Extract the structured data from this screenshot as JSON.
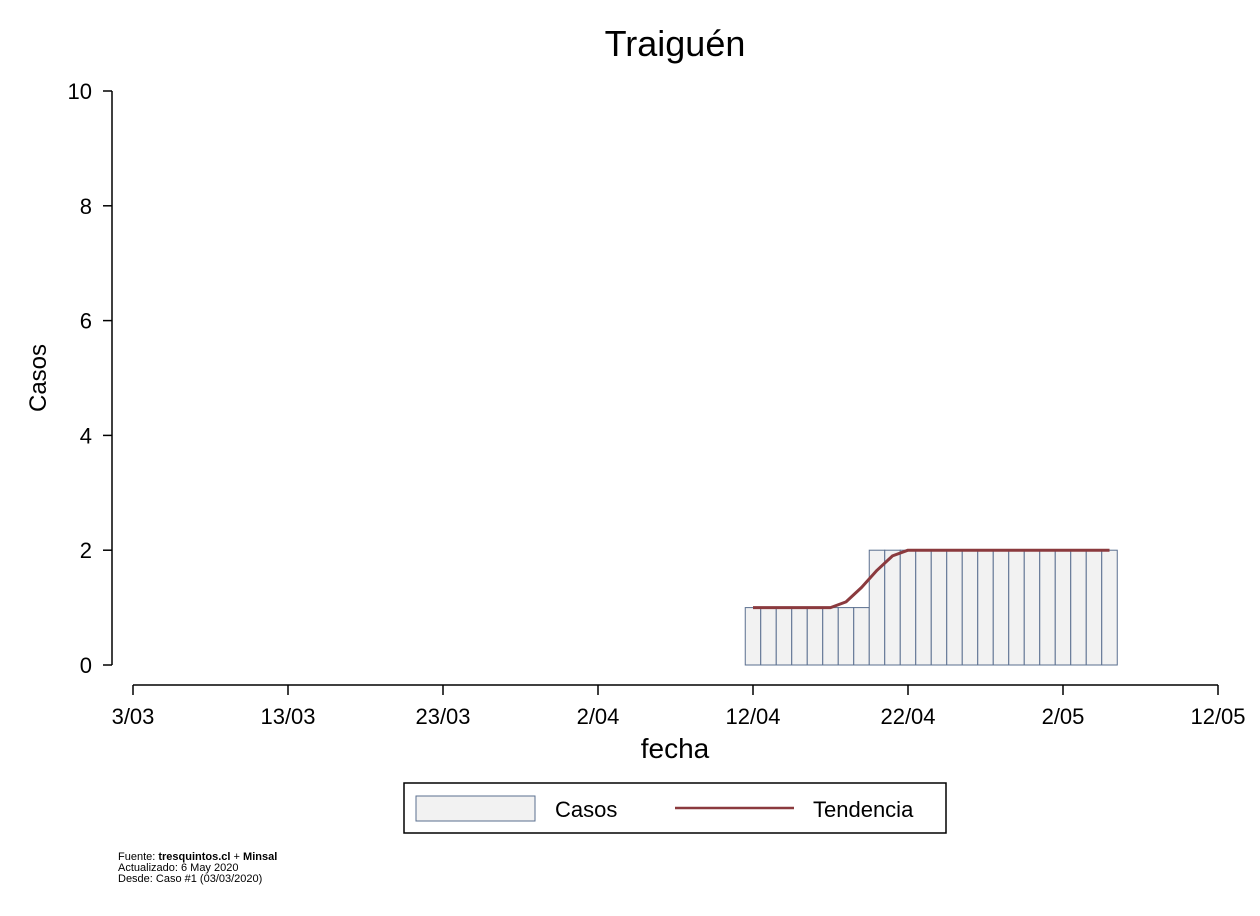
{
  "chart_data": {
    "type": "bar",
    "title": "Traiguén",
    "xlabel": "fecha",
    "ylabel": "Casos",
    "ylim": [
      0,
      10
    ],
    "yticks": [
      0,
      2,
      4,
      6,
      8,
      10
    ],
    "xlim": [
      "2020-03-03",
      "2020-05-12"
    ],
    "xticks": [
      {
        "date": "2020-03-03",
        "label": "3/03"
      },
      {
        "date": "2020-03-13",
        "label": "13/03"
      },
      {
        "date": "2020-03-23",
        "label": "23/03"
      },
      {
        "date": "2020-04-02",
        "label": "2/04"
      },
      {
        "date": "2020-04-12",
        "label": "12/04"
      },
      {
        "date": "2020-04-22",
        "label": "22/04"
      },
      {
        "date": "2020-05-02",
        "label": "2/05"
      },
      {
        "date": "2020-05-12",
        "label": "12/05"
      }
    ],
    "series": [
      {
        "name": "Casos",
        "type": "bar",
        "color": "#f2f2f2",
        "edge_color": "#5a6f8f",
        "x": [
          "2020-04-12",
          "2020-04-13",
          "2020-04-14",
          "2020-04-15",
          "2020-04-16",
          "2020-04-17",
          "2020-04-18",
          "2020-04-19",
          "2020-04-20",
          "2020-04-21",
          "2020-04-22",
          "2020-04-23",
          "2020-04-24",
          "2020-04-25",
          "2020-04-26",
          "2020-04-27",
          "2020-04-28",
          "2020-04-29",
          "2020-04-30",
          "2020-05-01",
          "2020-05-02",
          "2020-05-03",
          "2020-05-04",
          "2020-05-05"
        ],
        "values": [
          1,
          1,
          1,
          1,
          1,
          1,
          1,
          1,
          2,
          2,
          2,
          2,
          2,
          2,
          2,
          2,
          2,
          2,
          2,
          2,
          2,
          2,
          2,
          2
        ]
      },
      {
        "name": "Tendencia",
        "type": "line",
        "color": "#8b3a3e",
        "x": [
          "2020-04-12",
          "2020-04-13",
          "2020-04-14",
          "2020-04-15",
          "2020-04-16",
          "2020-04-17",
          "2020-04-18",
          "2020-04-19",
          "2020-04-20",
          "2020-04-21",
          "2020-04-22",
          "2020-04-23",
          "2020-04-24",
          "2020-04-25",
          "2020-04-26",
          "2020-04-27",
          "2020-04-28",
          "2020-04-29",
          "2020-04-30",
          "2020-05-01",
          "2020-05-02",
          "2020-05-03",
          "2020-05-04",
          "2020-05-05"
        ],
        "values": [
          1,
          1,
          1,
          1,
          1,
          1,
          1.1,
          1.35,
          1.65,
          1.9,
          2,
          2,
          2,
          2,
          2,
          2,
          2,
          2,
          2,
          2,
          2,
          2,
          2,
          2
        ]
      }
    ],
    "legend": {
      "position": "bottom",
      "entries": [
        "Casos",
        "Tendencia"
      ]
    }
  },
  "footer": {
    "source_prefix": "Fuente: ",
    "source_site": "tresquintos.cl",
    "source_join": " + ",
    "source_org": "Minsal",
    "updated": "Actualizado: 6 May 2020",
    "since": "Desde: Caso #1   (03/03/2020)"
  }
}
